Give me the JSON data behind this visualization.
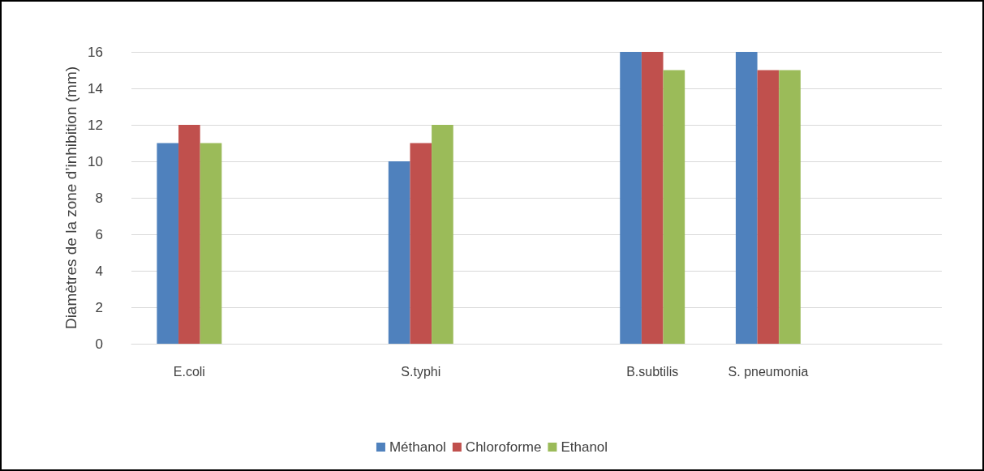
{
  "chart_data": {
    "type": "bar",
    "ylabel": "Diamètres de la zone d’inhibition (mm)",
    "categories": [
      "E.coli",
      null,
      "S.typhi",
      null,
      "B.subtilis",
      "S. pneumonia",
      null
    ],
    "series": [
      {
        "name": "Méthanol",
        "color": "#4f81bd",
        "values": [
          11,
          null,
          10,
          null,
          16,
          16,
          null
        ]
      },
      {
        "name": "Chloroforme",
        "color": "#c0504d",
        "values": [
          12,
          null,
          11,
          null,
          16,
          15,
          null
        ]
      },
      {
        "name": "Ethanol",
        "color": "#9bbb59",
        "values": [
          11,
          null,
          12,
          null,
          15,
          15,
          null
        ]
      }
    ],
    "ylim": [
      0,
      16
    ],
    "yticks": [
      0,
      2,
      4,
      6,
      8,
      10,
      12,
      14,
      16
    ],
    "grid": "y",
    "legend": "bottom"
  }
}
